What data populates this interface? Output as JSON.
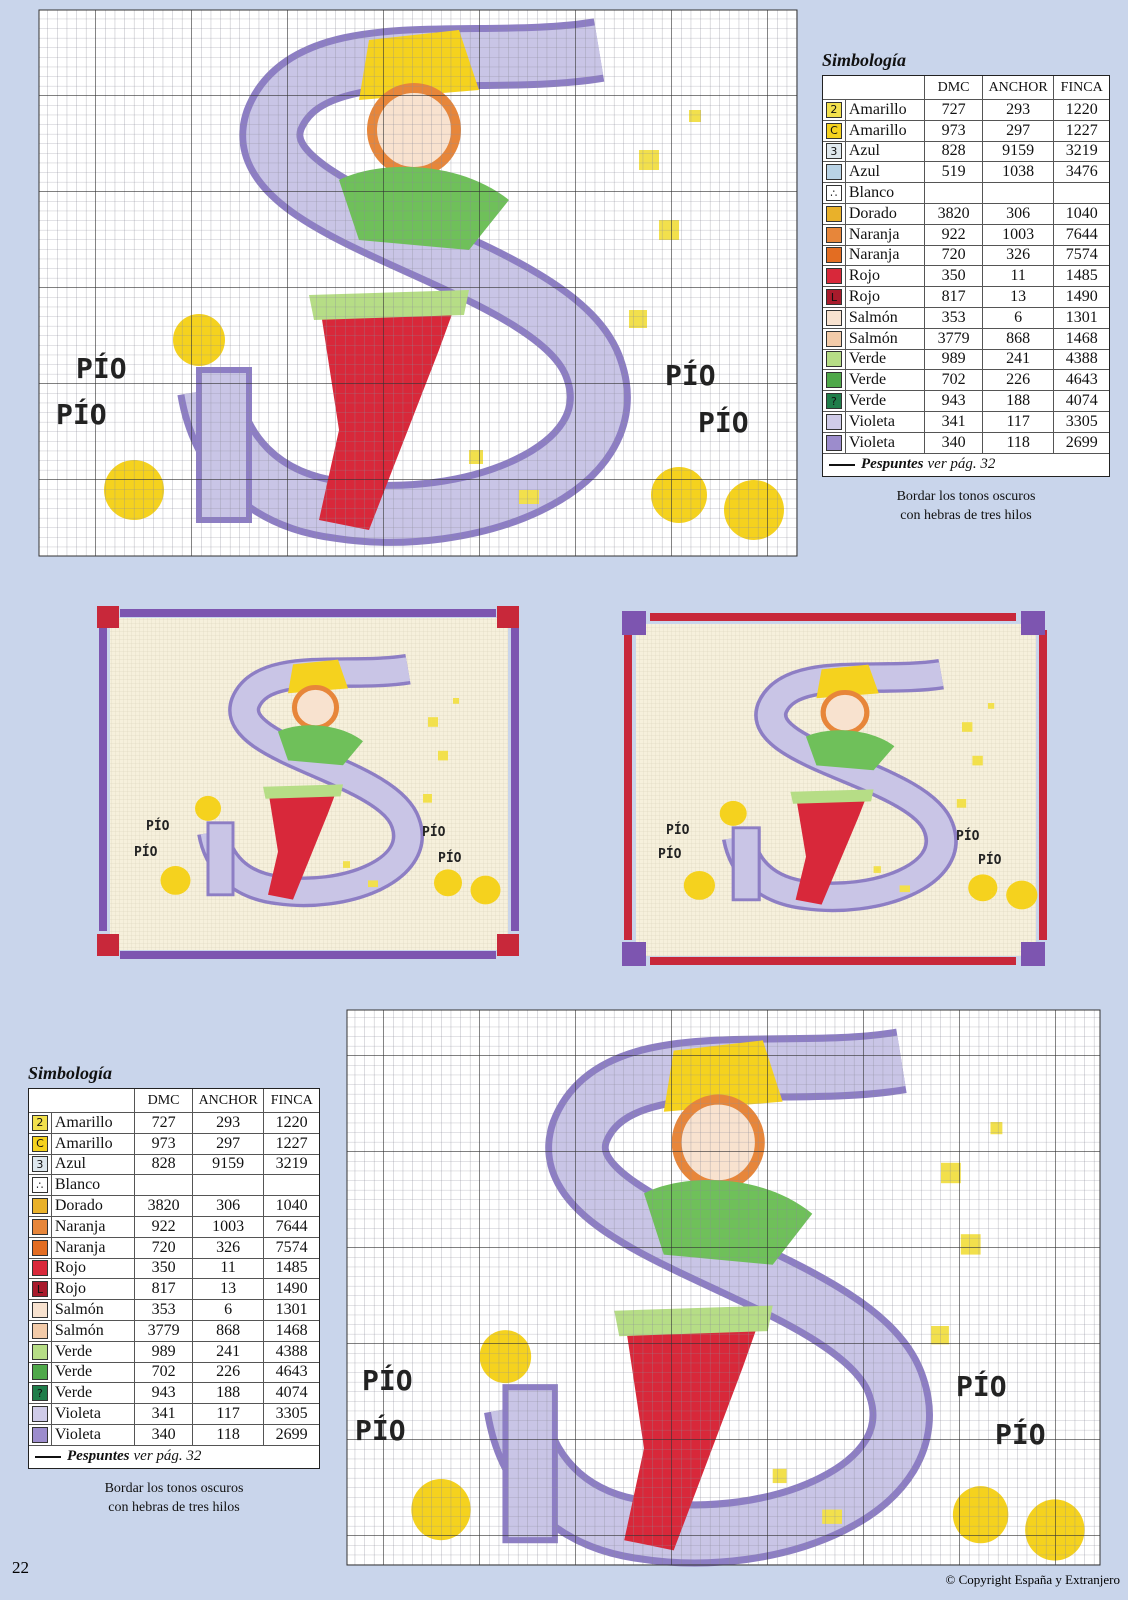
{
  "page": {
    "number": "22",
    "copyright": "© Copyright España y Extranjero"
  },
  "legends": [
    {
      "title": "Simbología",
      "headers": [
        "DMC",
        "ANCHOR",
        "FINCA"
      ],
      "rows": [
        {
          "symbol": "2",
          "swatch": "#f2e04c",
          "name": "Amarillo",
          "dmc": "727",
          "anchor": "293",
          "finca": "1220"
        },
        {
          "symbol": "C",
          "swatch": "#f5d21e",
          "name": "Amarillo",
          "dmc": "973",
          "anchor": "297",
          "finca": "1227"
        },
        {
          "symbol": "3",
          "swatch": "#dfe8ee",
          "name": "Azul",
          "dmc": "828",
          "anchor": "9159",
          "finca": "3219"
        },
        {
          "swatch": "#b9d3e6",
          "name": "Azul",
          "dmc": "519",
          "anchor": "1038",
          "finca": "3476"
        },
        {
          "symbol": "∴",
          "swatch": "#ffffff",
          "name": "Blanco"
        },
        {
          "swatch": "#e9b12a",
          "name": "Dorado",
          "dmc": "3820",
          "anchor": "306",
          "finca": "1040"
        },
        {
          "swatch": "#e7863a",
          "name": "Naranja",
          "dmc": "922",
          "anchor": "1003",
          "finca": "7644"
        },
        {
          "swatch": "#e36d22",
          "name": "Naranja",
          "dmc": "720",
          "anchor": "326",
          "finca": "7574"
        },
        {
          "swatch": "#d8283a",
          "name": "Rojo",
          "dmc": "350",
          "anchor": "11",
          "finca": "1485"
        },
        {
          "symbol": "L",
          "swatch": "#a81b2c",
          "name": "Rojo",
          "dmc": "817",
          "anchor": "13",
          "finca": "1490"
        },
        {
          "swatch": "#f8e2cf",
          "name": "Salmón",
          "dmc": "353",
          "anchor": "6",
          "finca": "1301"
        },
        {
          "swatch": "#f3cba9",
          "name": "Salmón",
          "dmc": "3779",
          "anchor": "868",
          "finca": "1468"
        },
        {
          "swatch": "#b6dd86",
          "name": "Verde",
          "dmc": "989",
          "anchor": "241",
          "finca": "4388"
        },
        {
          "swatch": "#4fa84a",
          "name": "Verde",
          "dmc": "702",
          "anchor": "226",
          "finca": "4643"
        },
        {
          "symbol": "?",
          "swatch": "#1f7d4a",
          "name": "Verde",
          "dmc": "943",
          "anchor": "188",
          "finca": "4074"
        },
        {
          "swatch": "#cfcbe8",
          "name": "Violeta",
          "dmc": "341",
          "anchor": "117",
          "finca": "3305"
        },
        {
          "swatch": "#9c8ccc",
          "name": "Violeta",
          "dmc": "340",
          "anchor": "118",
          "finca": "2699"
        }
      ],
      "footer_bold": "Pespuntes",
      "footer_rest": "ver pág. 32",
      "note": [
        "Bordar los tonos oscuros",
        "con hebras de tres hilos"
      ]
    },
    {
      "title": "Simbología",
      "headers": [
        "DMC",
        "ANCHOR",
        "FINCA"
      ],
      "rows": [
        {
          "symbol": "2",
          "swatch": "#f2e04c",
          "name": "Amarillo",
          "dmc": "727",
          "anchor": "293",
          "finca": "1220"
        },
        {
          "symbol": "C",
          "swatch": "#f5d21e",
          "name": "Amarillo",
          "dmc": "973",
          "anchor": "297",
          "finca": "1227"
        },
        {
          "symbol": "3",
          "swatch": "#dfe8ee",
          "name": "Azul",
          "dmc": "828",
          "anchor": "9159",
          "finca": "3219"
        },
        {
          "symbol": "∴",
          "swatch": "#ffffff",
          "name": "Blanco"
        },
        {
          "swatch": "#e9b12a",
          "name": "Dorado",
          "dmc": "3820",
          "anchor": "306",
          "finca": "1040"
        },
        {
          "swatch": "#e7863a",
          "name": "Naranja",
          "dmc": "922",
          "anchor": "1003",
          "finca": "7644"
        },
        {
          "swatch": "#e36d22",
          "name": "Naranja",
          "dmc": "720",
          "anchor": "326",
          "finca": "7574"
        },
        {
          "swatch": "#d8283a",
          "name": "Rojo",
          "dmc": "350",
          "anchor": "11",
          "finca": "1485"
        },
        {
          "symbol": "L",
          "swatch": "#a81b2c",
          "name": "Rojo",
          "dmc": "817",
          "anchor": "13",
          "finca": "1490"
        },
        {
          "swatch": "#f8e2cf",
          "name": "Salmón",
          "dmc": "353",
          "anchor": "6",
          "finca": "1301"
        },
        {
          "swatch": "#f3cba9",
          "name": "Salmón",
          "dmc": "3779",
          "anchor": "868",
          "finca": "1468"
        },
        {
          "swatch": "#b6dd86",
          "name": "Verde",
          "dmc": "989",
          "anchor": "241",
          "finca": "4388"
        },
        {
          "swatch": "#4fa84a",
          "name": "Verde",
          "dmc": "702",
          "anchor": "226",
          "finca": "4643"
        },
        {
          "symbol": "?",
          "swatch": "#1f7d4a",
          "name": "Verde",
          "dmc": "943",
          "anchor": "188",
          "finca": "4074"
        },
        {
          "swatch": "#cfcbe8",
          "name": "Violeta",
          "dmc": "341",
          "anchor": "117",
          "finca": "3305"
        },
        {
          "swatch": "#9c8ccc",
          "name": "Violeta",
          "dmc": "340",
          "anchor": "118",
          "finca": "2699"
        }
      ],
      "footer_bold": "Pespuntes",
      "footer_rest": "ver pág. 32",
      "note": [
        "Bordar los tonos oscuros",
        "con hebras de tres hilos"
      ]
    }
  ],
  "charts": [
    {
      "labels": [
        "PÍO",
        "PÍO",
        "PÍO",
        "PÍO"
      ]
    },
    {
      "labels": [
        "PÍO",
        "PÍO",
        "PÍO",
        "PÍO"
      ]
    },
    {
      "labels": [
        "PÍO",
        "PÍO",
        "PÍO",
        "PÍO"
      ]
    },
    {
      "labels": [
        "PÍO",
        "PÍO",
        "PÍO",
        "PÍO"
      ]
    }
  ]
}
